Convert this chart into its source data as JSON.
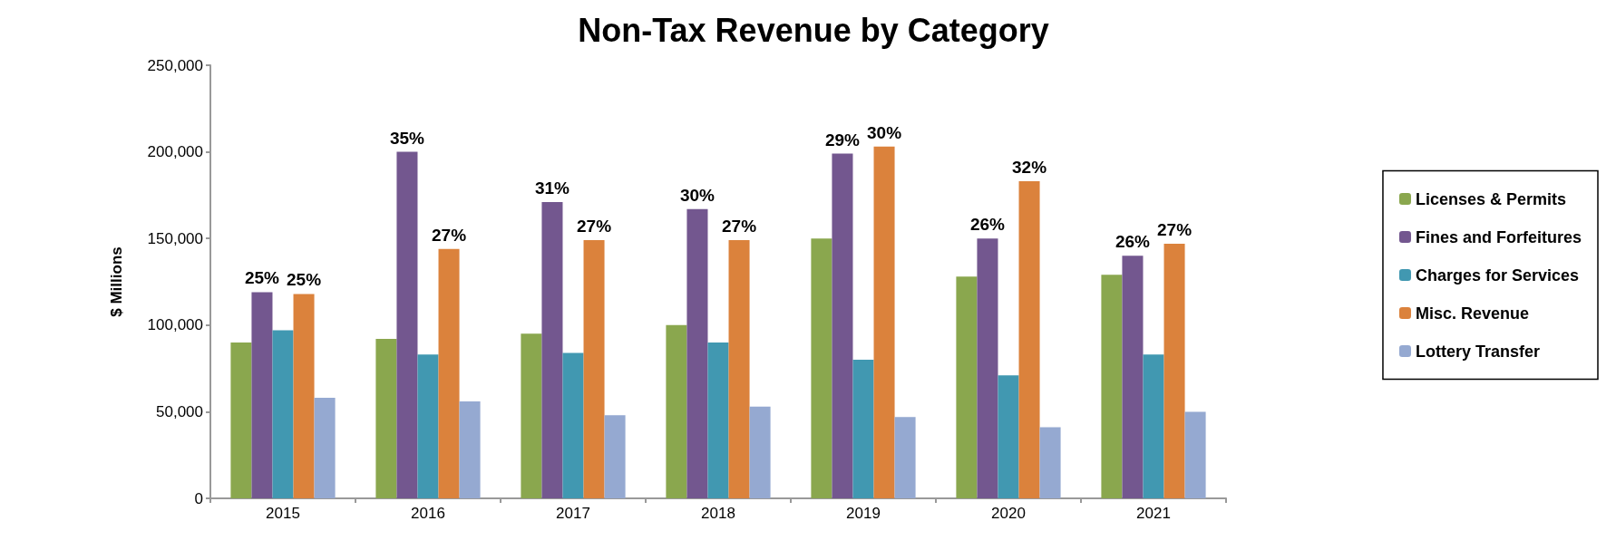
{
  "chart_data": {
    "type": "bar",
    "title": "Non-Tax Revenue by Category",
    "ylabel": "$ Millions",
    "categories": [
      "2015",
      "2016",
      "2017",
      "2018",
      "2019",
      "2020",
      "2021"
    ],
    "ylim": [
      0,
      250000
    ],
    "yticks": [
      0,
      {
        "value": 50000,
        "label": "50,000"
      },
      {
        "value": 100000,
        "label": "100,000"
      },
      {
        "value": 150000,
        "label": "150,000"
      },
      {
        "value": 200000,
        "label": "200,000"
      },
      {
        "value": 250000,
        "label": "250,000"
      }
    ],
    "legend": "right",
    "grid": false,
    "series": [
      {
        "name": "Licenses & Permits",
        "color": "#8aa74e",
        "values": [
          90000,
          92000,
          95000,
          100000,
          150000,
          128000,
          129000
        ]
      },
      {
        "name": "Fines and Forfeitures",
        "color": "#73578f",
        "values": [
          119000,
          200000,
          171000,
          167000,
          199000,
          150000,
          140000
        ]
      },
      {
        "name": "Charges for Services",
        "color": "#4198b1",
        "values": [
          97000,
          83000,
          84000,
          90000,
          80000,
          71000,
          83000
        ]
      },
      {
        "name": "Misc. Revenue",
        "color": "#db823c",
        "values": [
          118000,
          144000,
          149000,
          149000,
          203000,
          183000,
          147000
        ]
      },
      {
        "name": "Lottery Transfer",
        "color": "#95a9d1",
        "values": [
          58000,
          56000,
          48000,
          53000,
          47000,
          41000,
          50000
        ]
      }
    ],
    "annotations": [
      "25%",
      "25%",
      "35%",
      "27%",
      "31%",
      "27%",
      "30%",
      "27%",
      "29%",
      "30%",
      "26%",
      "32%",
      "26%",
      "27%"
    ]
  }
}
